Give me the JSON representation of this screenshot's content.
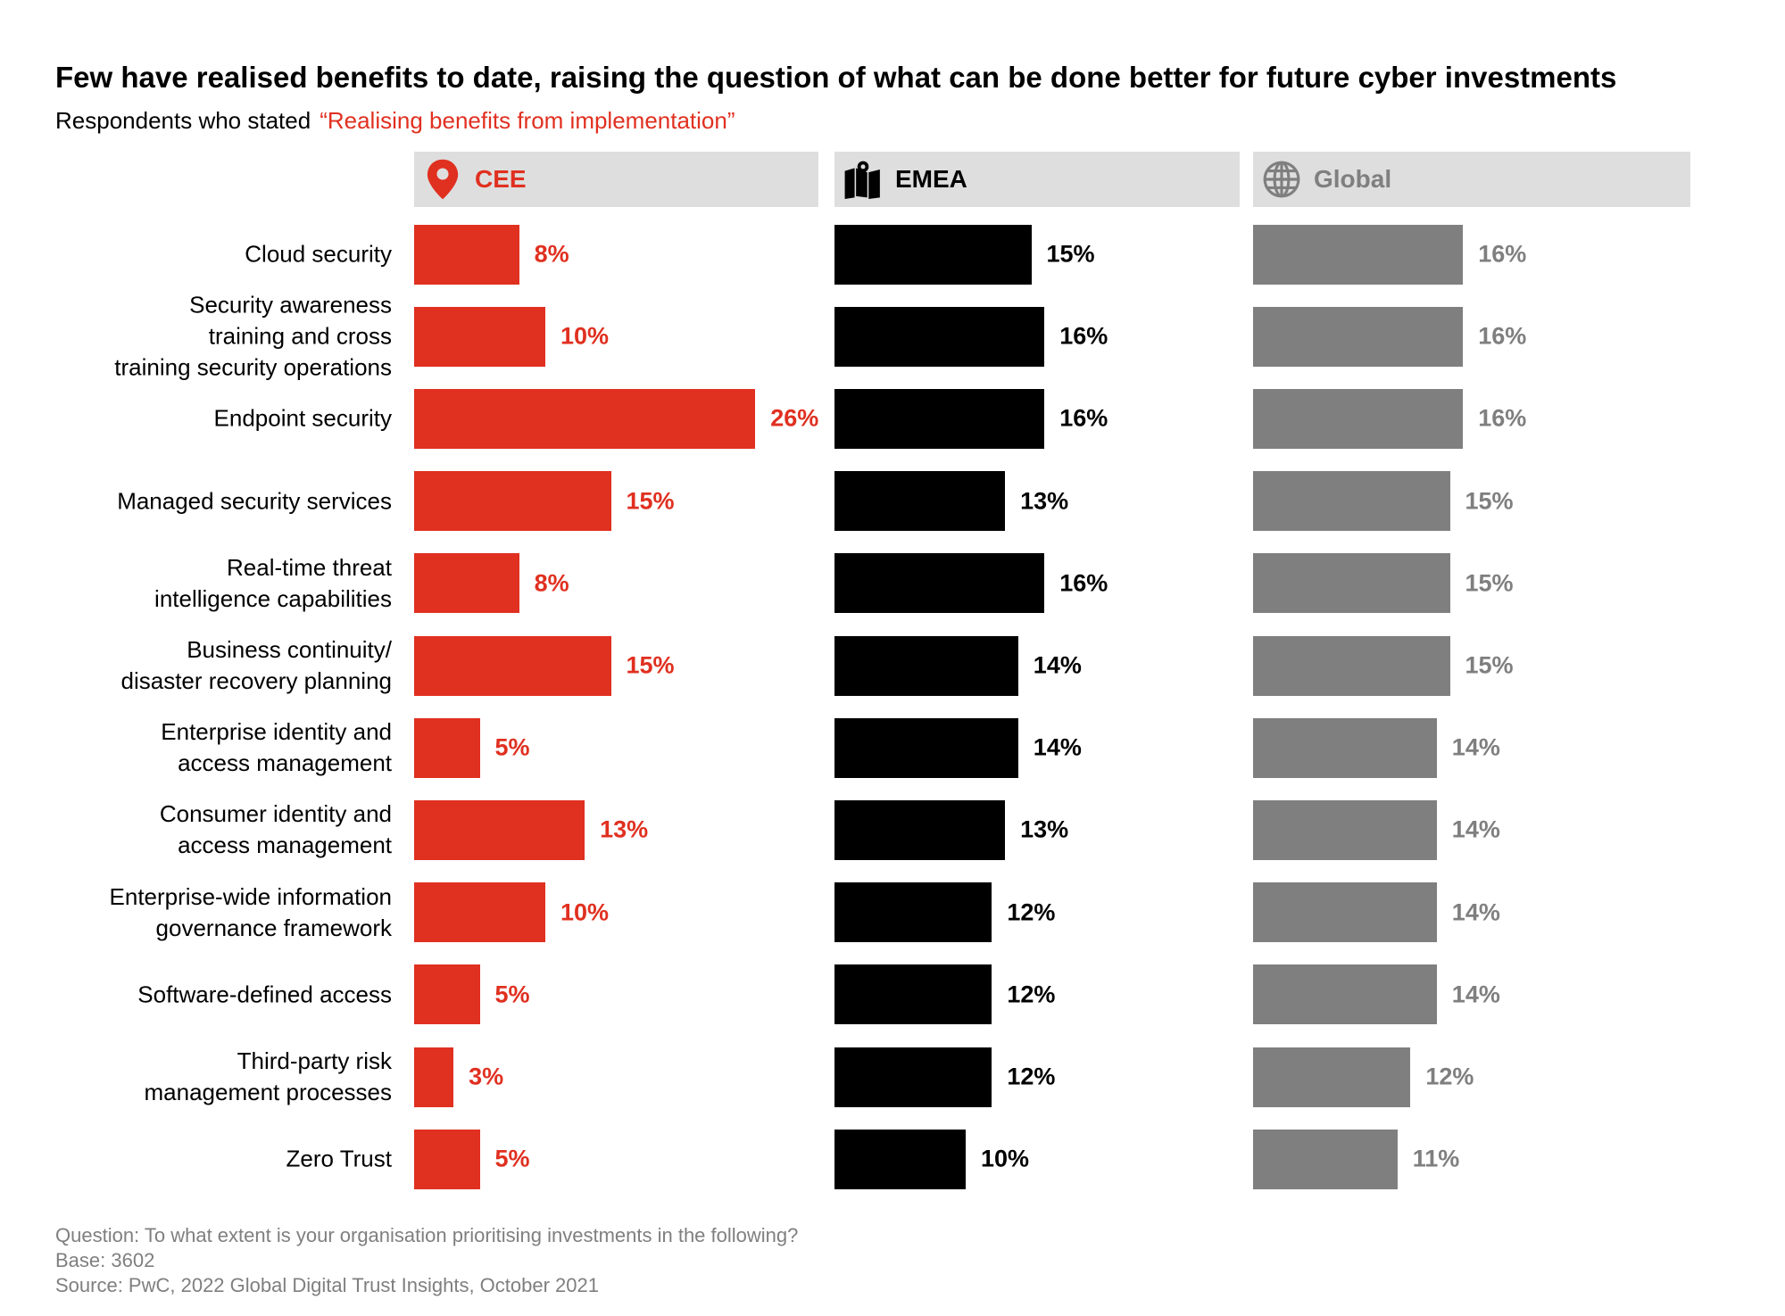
{
  "title": "Few have realised benefits to date, raising the question of what can be done better for future cyber investments",
  "subtitle": "Respondents who stated",
  "subtitle_quote": "“Realising benefits from implementation”",
  "footnotes": [
    "Question: To what extent is your organisation prioritising investments in the following?",
    "Base: 3602",
    "Source: PwC, 2022 Global Digital Trust Insights, October 2021"
  ],
  "chart_data": {
    "type": "bar",
    "orientation": "horizontal",
    "categories": [
      "Cloud security",
      "Security awareness training and cross training security operations",
      "Endpoint security",
      "Managed security services",
      "Real-time threat intelligence capabilities",
      "Business continuity/ disaster recovery planning",
      "Enterprise identity and access management",
      "Consumer identity and access management",
      "Enterprise-wide information governance framework",
      "Software-defined access",
      "Third-party risk management processes",
      "Zero Trust"
    ],
    "category_lines": [
      [
        "Cloud security"
      ],
      [
        "Security awareness",
        "training and cross",
        "training security operations"
      ],
      [
        "Endpoint security"
      ],
      [
        "Managed security services"
      ],
      [
        "Real-time threat",
        "intelligence capabilities"
      ],
      [
        "Business continuity/",
        "disaster recovery planning"
      ],
      [
        "Enterprise identity and",
        "access management"
      ],
      [
        "Consumer identity and",
        "access management"
      ],
      [
        "Enterprise-wide information",
        "governance framework"
      ],
      [
        "Software-defined access"
      ],
      [
        "Third-party risk",
        "management processes"
      ],
      [
        "Zero Trust"
      ]
    ],
    "series": [
      {
        "name": "CEE",
        "icon": "map-pin-icon",
        "color": "#e03020",
        "values": [
          8,
          10,
          26,
          15,
          8,
          15,
          5,
          13,
          10,
          5,
          3,
          5
        ]
      },
      {
        "name": "EMEA",
        "icon": "map-icon",
        "color": "#000000",
        "values": [
          15,
          16,
          16,
          13,
          16,
          14,
          14,
          13,
          12,
          12,
          12,
          10
        ]
      },
      {
        "name": "Global",
        "icon": "globe-icon",
        "color": "#7f7f7f",
        "values": [
          16,
          16,
          16,
          15,
          15,
          15,
          14,
          14,
          14,
          14,
          12,
          11
        ]
      }
    ],
    "unit": "%"
  }
}
